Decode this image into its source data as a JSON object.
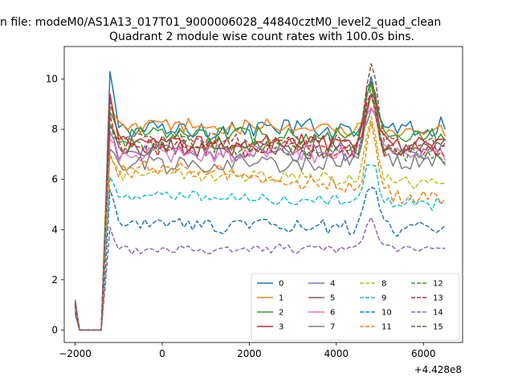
{
  "chart_data": {
    "type": "line",
    "suptitle": "n file: modeM0/AS1A13_017T01_9000006028_44840cztM0_level2_quad_clean",
    "title": "Quadrant 2 module wise count rates with 100.0s bins.",
    "xlabel": "",
    "ylabel": "",
    "x_offset_label": "+4.428e8",
    "xlim": [
      -2250,
      6900
    ],
    "ylim": [
      -0.5,
      11.3
    ],
    "x_ticks": [
      -2000,
      0,
      2000,
      4000,
      6000
    ],
    "x_tick_labels": [
      "−2000",
      "0",
      "2000",
      "4000",
      "6000"
    ],
    "y_ticks": [
      0,
      2,
      4,
      6,
      8,
      10
    ],
    "y_tick_labels": [
      "0",
      "2",
      "4",
      "6",
      "8",
      "10"
    ],
    "grid": false,
    "legend_position": "lower-right",
    "legend_columns": 4,
    "x": {
      "start": -2000,
      "step": 100,
      "count": 86
    },
    "series": [
      {
        "name": "0",
        "color": "#1f77b4",
        "dash": "solid",
        "base": 8.0,
        "amp": 0.35,
        "ramp": 0.1,
        "peak": 1.9,
        "start_level": 1.2,
        "first_spike": 10.3
      },
      {
        "name": "1",
        "color": "#ff7f0e",
        "dash": "solid",
        "base": 8.1,
        "amp": 0.3,
        "ramp": -0.2,
        "peak": 1.7,
        "start_level": 1.1,
        "first_spike": 8.9
      },
      {
        "name": "2",
        "color": "#2ca02c",
        "dash": "solid",
        "base": 7.8,
        "amp": 0.35,
        "ramp": -0.2,
        "peak": 2.1,
        "start_level": 1.0,
        "first_spike": 8.7
      },
      {
        "name": "3",
        "color": "#d62728",
        "dash": "solid",
        "base": 7.4,
        "amp": 0.35,
        "ramp": 0.1,
        "peak": 1.8,
        "start_level": 1.1,
        "first_spike": 9.4
      },
      {
        "name": "4",
        "color": "#9467bd",
        "dash": "solid",
        "base": 7.1,
        "amp": 0.3,
        "ramp": 0.0,
        "peak": 1.8,
        "start_level": 1.0,
        "first_spike": 7.9
      },
      {
        "name": "5",
        "color": "#8c564b",
        "dash": "solid",
        "base": 7.2,
        "amp": 0.35,
        "ramp": 0.0,
        "peak": 2.8,
        "start_level": 1.1,
        "first_spike": 8.2
      },
      {
        "name": "6",
        "color": "#e377c2",
        "dash": "solid",
        "base": 7.0,
        "amp": 0.3,
        "ramp": 0.1,
        "peak": 1.9,
        "start_level": 1.0,
        "first_spike": 7.6
      },
      {
        "name": "7",
        "color": "#7f7f7f",
        "dash": "solid",
        "base": 6.6,
        "amp": 0.35,
        "ramp": 0.2,
        "peak": 2.8,
        "start_level": 1.0,
        "first_spike": 7.2
      },
      {
        "name": "8",
        "color": "#bcbd22",
        "dash": "dashed",
        "base": 6.2,
        "amp": 0.25,
        "ramp": -0.3,
        "peak": 2.6,
        "start_level": 0.9,
        "first_spike": 6.9
      },
      {
        "name": "9",
        "color": "#17becf",
        "dash": "dashed",
        "base": 5.3,
        "amp": 0.2,
        "ramp": -0.3,
        "peak": 1.7,
        "start_level": 0.8,
        "first_spike": 6.1
      },
      {
        "name": "10",
        "color": "#1f77b4",
        "dash": "dashed",
        "base": 4.2,
        "amp": 0.25,
        "ramp": -0.2,
        "peak": 1.9,
        "start_level": 0.7,
        "first_spike": 5.6
      },
      {
        "name": "11",
        "color": "#ff7f0e",
        "dash": "dashed",
        "base": 6.4,
        "amp": 0.3,
        "ramp": -1.3,
        "peak": 2.5,
        "start_level": 0.9,
        "first_spike": 7.0
      },
      {
        "name": "12",
        "color": "#2ca02c",
        "dash": "dashed",
        "base": 7.4,
        "amp": 0.3,
        "ramp": -0.4,
        "peak": 2.4,
        "start_level": 1.0,
        "first_spike": 8.2
      },
      {
        "name": "13",
        "color": "#d62728",
        "dash": "dashed",
        "base": 7.3,
        "amp": 0.3,
        "ramp": -0.2,
        "peak": 2.2,
        "start_level": 1.0,
        "first_spike": 8.6
      },
      {
        "name": "14",
        "color": "#9467bd",
        "dash": "dashed",
        "base": 3.2,
        "amp": 0.15,
        "ramp": 0.1,
        "peak": 1.2,
        "start_level": 0.6,
        "first_spike": 4.1
      },
      {
        "name": "15",
        "color": "#8c564b",
        "dash": "dashed",
        "base": 7.6,
        "amp": 0.3,
        "ramp": -0.2,
        "peak": 3.1,
        "start_level": 1.0,
        "first_spike": 9.2
      }
    ]
  }
}
